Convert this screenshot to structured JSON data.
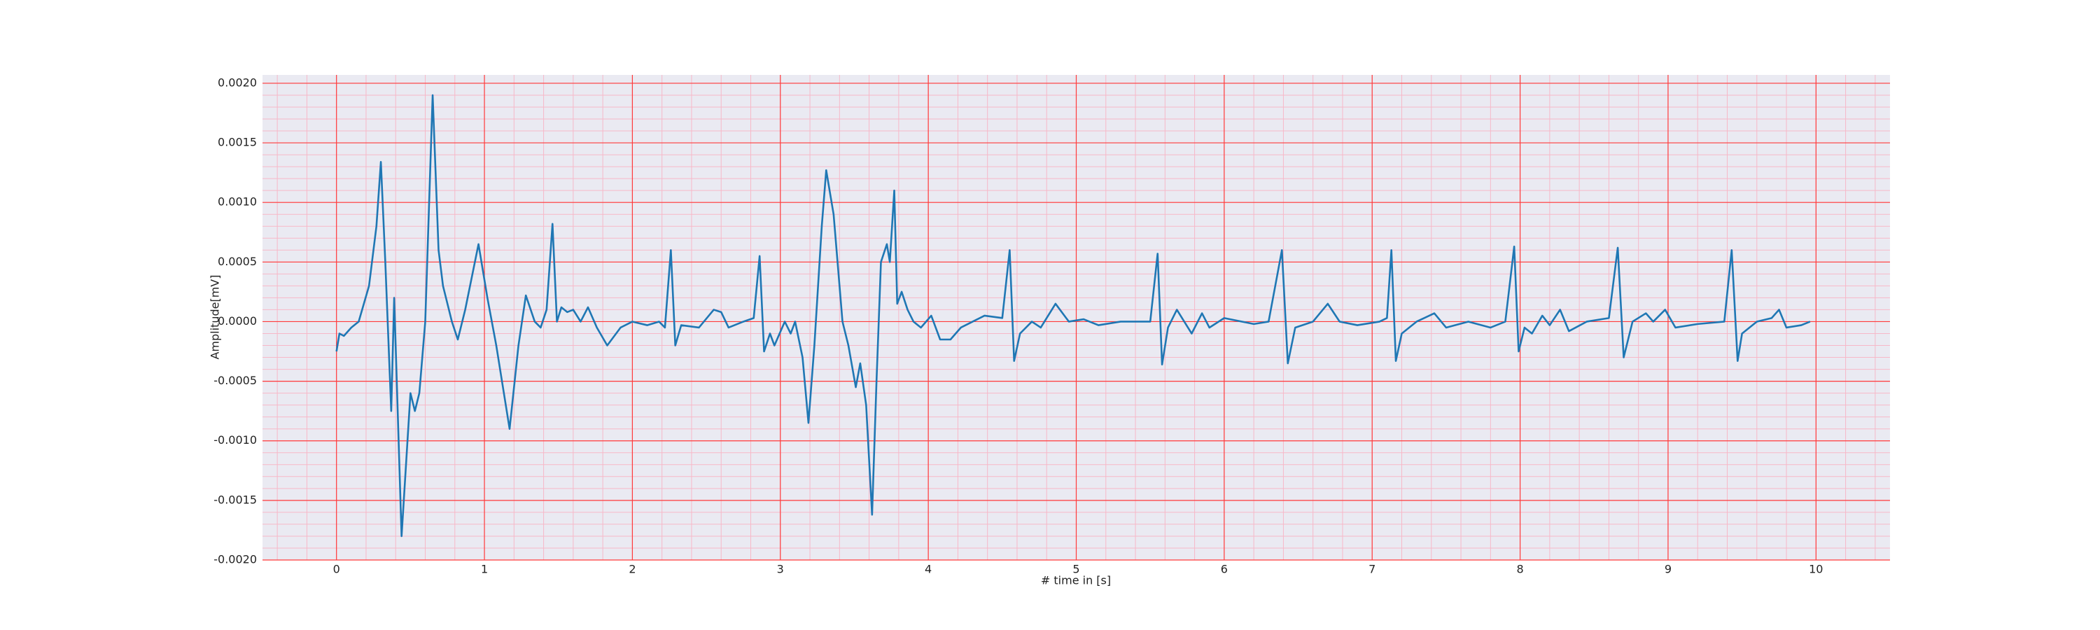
{
  "chart_data": {
    "type": "line",
    "xlabel": "# time in [s]",
    "ylabel": "Amplitude[mV]",
    "color": "#1f77b4",
    "background": "#eaeaf2",
    "grid": true,
    "grid_color": "#ff3b3b",
    "minor_grid": true,
    "minor_grid_color": "#f7b8c8",
    "xlim": [
      -0.5,
      10.5
    ],
    "xticks": [
      0,
      1,
      2,
      3,
      4,
      5,
      6,
      7,
      8,
      9,
      10
    ],
    "ylim": [
      -0.002,
      0.00207
    ],
    "yticks": [
      {
        "value": -0.002,
        "label": "-0.0020"
      },
      {
        "value": -0.0015,
        "label": "-0.0015"
      },
      {
        "value": -0.001,
        "label": "-0.0010"
      },
      {
        "value": -0.0005,
        "label": "-0.0005"
      },
      {
        "value": 0,
        "label": "0.0000"
      },
      {
        "value": 0.0005,
        "label": "0.0005"
      },
      {
        "value": 0.001,
        "label": "0.0010"
      },
      {
        "value": 0.0015,
        "label": "0.0015"
      },
      {
        "value": 0.002,
        "label": "0.0020"
      }
    ],
    "x": [
      0,
      0.02,
      0.05,
      0.1,
      0.15,
      0.22,
      0.27,
      0.3,
      0.33,
      0.37,
      0.39,
      0.44,
      0.5,
      0.53,
      0.56,
      0.6,
      0.65,
      0.69,
      0.72,
      0.78,
      0.82,
      0.87,
      0.96,
      1.02,
      1.08,
      1.17,
      1.23,
      1.28,
      1.34,
      1.38,
      1.42,
      1.46,
      1.49,
      1.52,
      1.56,
      1.6,
      1.65,
      1.7,
      1.76,
      1.83,
      1.92,
      2.0,
      2.1,
      2.18,
      2.22,
      2.26,
      2.29,
      2.33,
      2.45,
      2.55,
      2.6,
      2.65,
      2.75,
      2.82,
      2.86,
      2.89,
      2.93,
      2.96,
      3.03,
      3.07,
      3.1,
      3.15,
      3.19,
      3.23,
      3.28,
      3.31,
      3.36,
      3.42,
      3.46,
      3.51,
      3.54,
      3.58,
      3.62,
      3.65,
      3.68,
      3.72,
      3.74,
      3.77,
      3.79,
      3.82,
      3.86,
      3.9,
      3.95,
      4.02,
      4.08,
      4.15,
      4.22,
      4.3,
      4.38,
      4.5,
      4.55,
      4.58,
      4.62,
      4.7,
      4.76,
      4.86,
      4.95,
      5.05,
      5.15,
      5.3,
      5.5,
      5.55,
      5.58,
      5.62,
      5.68,
      5.78,
      5.85,
      5.9,
      6.0,
      6.2,
      6.3,
      6.39,
      6.43,
      6.48,
      6.6,
      6.7,
      6.78,
      6.9,
      7.05,
      7.1,
      7.13,
      7.16,
      7.2,
      7.3,
      7.42,
      7.5,
      7.65,
      7.8,
      7.9,
      7.96,
      7.99,
      8.03,
      8.08,
      8.15,
      8.2,
      8.27,
      8.33,
      8.45,
      8.6,
      8.66,
      8.7,
      8.76,
      8.85,
      8.9,
      8.98,
      9.05,
      9.2,
      9.38,
      9.43,
      9.47,
      9.5,
      9.6,
      9.7,
      9.75,
      9.8,
      9.9,
      9.96
    ],
    "values": [
      -0.00025,
      -0.0001,
      -0.00012,
      -5e-05,
      0,
      0.0003,
      0.0008,
      0.00134,
      0.0005,
      -0.00075,
      0.0002,
      -0.0018,
      -0.0006,
      -0.00075,
      -0.0006,
      0,
      0.0019,
      0.0006,
      0.0003,
      0,
      -0.00015,
      0.0001,
      0.00065,
      0.0002,
      -0.0002,
      -0.0009,
      -0.0002,
      0.00022,
      0,
      -5e-05,
      0.0001,
      0.00082,
      0,
      0.00012,
      8e-05,
      0.0001,
      0,
      0.00012,
      -5e-05,
      -0.0002,
      -5e-05,
      0,
      -3e-05,
      0,
      -5e-05,
      0.0006,
      -0.0002,
      -3e-05,
      -5e-05,
      0.0001,
      8e-05,
      -5e-05,
      0,
      3e-05,
      0.00055,
      -0.00025,
      -0.0001,
      -0.0002,
      0,
      -0.0001,
      0,
      -0.0003,
      -0.00085,
      -0.0002,
      0.0008,
      0.00127,
      0.0009,
      0,
      -0.0002,
      -0.00055,
      -0.00035,
      -0.0007,
      -0.00162,
      -0.0005,
      0.0005,
      0.00065,
      0.0005,
      0.0011,
      0.00015,
      0.00025,
      0.0001,
      0,
      -5e-05,
      5e-05,
      -0.00015,
      -0.00015,
      -5e-05,
      0,
      5e-05,
      3e-05,
      0.0006,
      -0.00033,
      -0.0001,
      0,
      -5e-05,
      0.00015,
      0,
      2e-05,
      -3e-05,
      0,
      0,
      0.00057,
      -0.00036,
      -5e-05,
      0.0001,
      -0.0001,
      7e-05,
      -5e-05,
      3e-05,
      -2e-05,
      0,
      0.0006,
      -0.00035,
      -5e-05,
      0,
      0.00015,
      0,
      -3e-05,
      0,
      3e-05,
      0.0006,
      -0.00033,
      -0.0001,
      0,
      7e-05,
      -5e-05,
      0,
      -5e-05,
      0,
      0.00063,
      -0.00025,
      -5e-05,
      -0.0001,
      5e-05,
      -3e-05,
      0.0001,
      -8e-05,
      0,
      3e-05,
      0.00062,
      -0.0003,
      0,
      7e-05,
      0,
      0.0001,
      -5e-05,
      -2e-05,
      0,
      0.0006,
      -0.00033,
      -0.0001,
      0,
      3e-05,
      0.0001,
      -5e-05,
      -3e-05,
      0
    ]
  }
}
